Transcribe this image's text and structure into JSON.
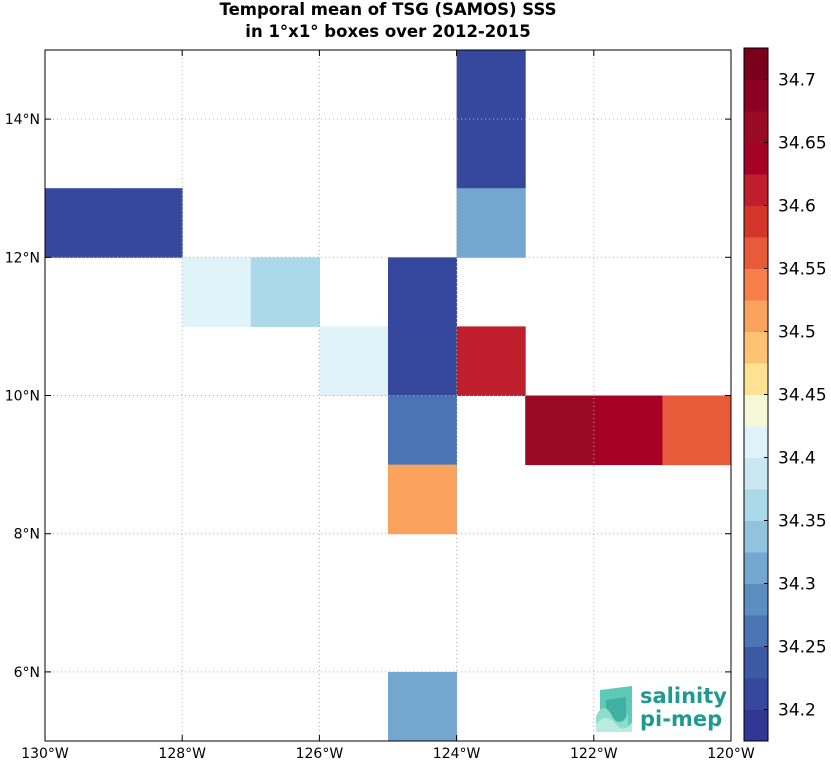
{
  "title": {
    "line1": "Temporal mean of TSG (SAMOS) SSS",
    "line2": "in 1°x1° boxes over 2012-2015"
  },
  "map": {
    "lon_range": [
      -130,
      -120
    ],
    "lat_range": [
      5,
      15
    ],
    "grid": true,
    "x_ticks": [
      {
        "value": -130,
        "label": "130°W"
      },
      {
        "value": -128,
        "label": "128°W"
      },
      {
        "value": -126,
        "label": "126°W"
      },
      {
        "value": -124,
        "label": "124°W"
      },
      {
        "value": -122,
        "label": "122°W"
      },
      {
        "value": -120,
        "label": "120°W"
      }
    ],
    "y_ticks": [
      {
        "value": 6,
        "label": "6°N"
      },
      {
        "value": 8,
        "label": "8°N"
      },
      {
        "value": 10,
        "label": "10°N"
      },
      {
        "value": 12,
        "label": "12°N"
      },
      {
        "value": 14,
        "label": "14°N"
      }
    ]
  },
  "chart_data": {
    "type": "heatmap",
    "title": "Temporal mean of TSG (SAMOS) SSS in 1°x1° boxes over 2012-2015",
    "xlim": [
      -130,
      -120
    ],
    "ylim": [
      5,
      15
    ],
    "cells": [
      {
        "lon": -124,
        "lat": 15,
        "value": 34.21
      },
      {
        "lon": -124,
        "lat": 14,
        "value": 34.21
      },
      {
        "lon": -124,
        "lat": 13,
        "value": 34.31
      },
      {
        "lon": -130,
        "lat": 13,
        "value": 34.21
      },
      {
        "lon": -129,
        "lat": 13,
        "value": 34.21
      },
      {
        "lon": -128,
        "lat": 12,
        "value": 34.41
      },
      {
        "lon": -127,
        "lat": 12,
        "value": 34.36
      },
      {
        "lon": -125,
        "lat": 12,
        "value": 34.21
      },
      {
        "lon": -126,
        "lat": 11,
        "value": 34.41
      },
      {
        "lon": -125,
        "lat": 11,
        "value": 34.21
      },
      {
        "lon": -124,
        "lat": 11,
        "value": 34.61
      },
      {
        "lon": -125,
        "lat": 10,
        "value": 34.26
      },
      {
        "lon": -123,
        "lat": 10,
        "value": 34.66
      },
      {
        "lon": -122,
        "lat": 10,
        "value": 34.64
      },
      {
        "lon": -121,
        "lat": 10,
        "value": 34.56
      },
      {
        "lon": -125,
        "lat": 9,
        "value": 34.51
      },
      {
        "lon": -125,
        "lat": 6,
        "value": 34.31
      }
    ],
    "colorbar": {
      "min": 34.175,
      "max": 34.725,
      "step": 0.025,
      "colors": [
        "#313695",
        "#36479e",
        "#3c59a6",
        "#4a74b4",
        "#5b8ec1",
        "#74a7cf",
        "#91c3df",
        "#abd9e9",
        "#c9e8f1",
        "#e0f3f8",
        "#f5f8d7",
        "#fee191",
        "#fdc274",
        "#fba35e",
        "#f67f4b",
        "#e85b3a",
        "#d4372a",
        "#bf1f2c",
        "#a50026",
        "#9a0a23",
        "#8c0021",
        "#7a001c"
      ],
      "ticks": [
        34.2,
        34.25,
        34.3,
        34.35,
        34.4,
        34.45,
        34.5,
        34.55,
        34.6,
        34.65,
        34.7
      ]
    }
  },
  "logo": {
    "line1": "salinity",
    "line2": "pi-mep"
  },
  "style": {
    "grid_color": "#b0b0b0",
    "axis_color": "#000000",
    "logo_color": "#1f9a91"
  }
}
